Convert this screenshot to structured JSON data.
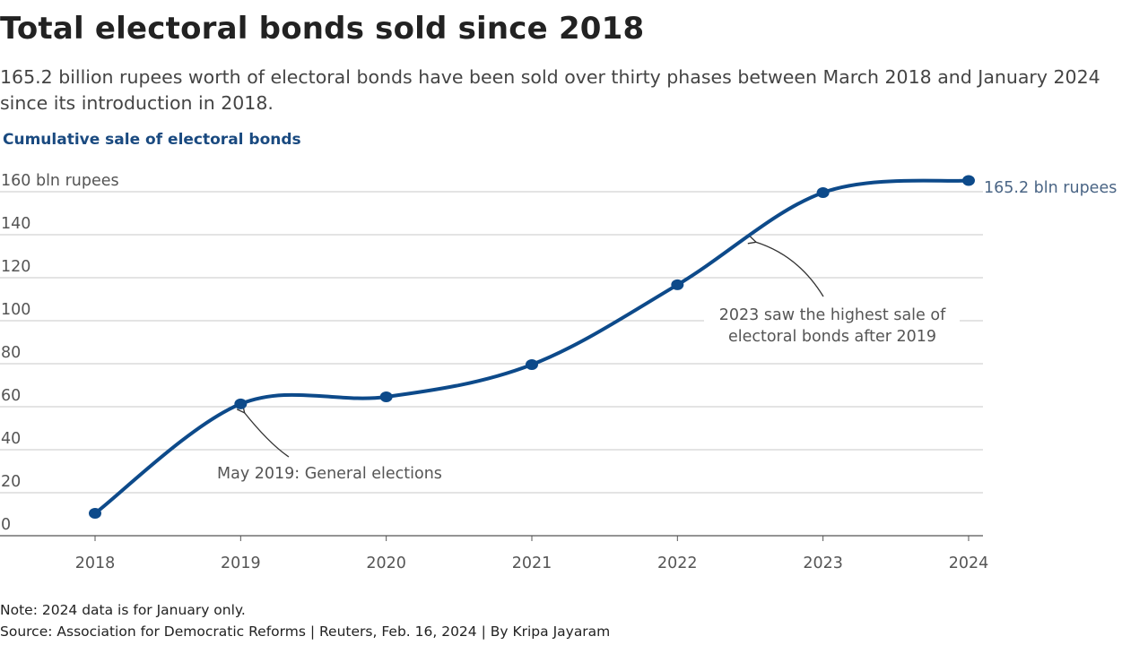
{
  "header": {
    "title": "Total electoral bonds sold since 2018",
    "subtitle": "165.2 billion rupees worth of electoral bonds have been sold over thirty phases between March 2018 and January 2024 since its introduction in 2018."
  },
  "chart_data": {
    "type": "line",
    "title": "Cumulative sale of electoral bonds",
    "xlabel": "",
    "ylabel": "bln rupees",
    "categories": [
      "2018",
      "2019",
      "2020",
      "2021",
      "2022",
      "2023",
      "2024"
    ],
    "series": [
      {
        "name": "Cumulative sale",
        "values": [
          10.4,
          61.3,
          64.6,
          79.6,
          116.7,
          159.6,
          165.2
        ]
      }
    ],
    "ylim": [
      0,
      160
    ],
    "yticks": [
      0,
      20,
      40,
      60,
      80,
      100,
      120,
      140,
      160
    ],
    "ytick_labels": [
      "0",
      "20",
      "40",
      "60",
      "80",
      "100",
      "120",
      "140",
      "160 bln rupees"
    ],
    "end_label": "165.2 bln rupees",
    "grid": true,
    "color": "#0d4a8a",
    "annotations": [
      {
        "text": "May 2019: General elections",
        "target": "2019"
      },
      {
        "text_lines": [
          "2023 saw the highest sale of",
          "electoral bonds after 2019"
        ],
        "target": "2022-2023"
      }
    ]
  },
  "footer": {
    "note": "Note: 2024 data is for January only.",
    "source": "Source: Association for Democratic Reforms | Reuters, Feb. 16, 2024 | By Kripa Jayaram"
  }
}
